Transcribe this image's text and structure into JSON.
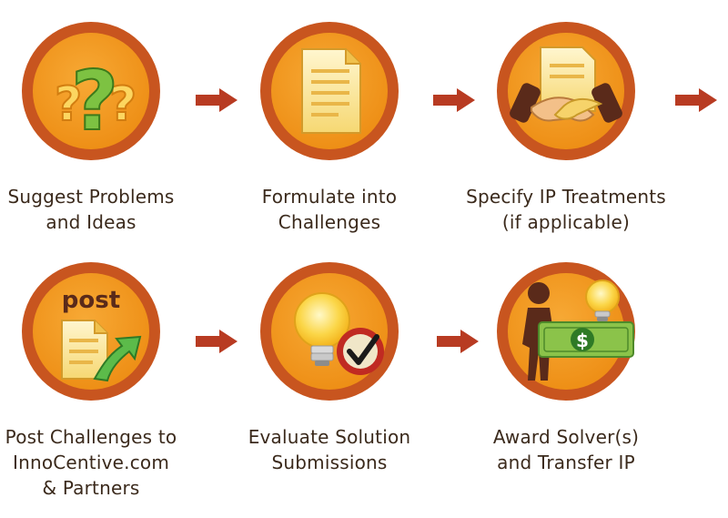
{
  "colors": {
    "ring": "#c8551f",
    "disc": "#f29a1f",
    "text": "#3b2a1c",
    "arrow": "#b83b22"
  },
  "steps": [
    {
      "icon": "question-marks-icon",
      "line1": "Suggest Problems",
      "line2": "and Ideas",
      "line3": ""
    },
    {
      "icon": "document-icon",
      "line1": "Formulate into",
      "line2": "Challenges",
      "line3": ""
    },
    {
      "icon": "handshake-icon",
      "line1": "Specify IP Treatments",
      "line2": "(if applicable)",
      "line3": ""
    },
    {
      "icon": "post-document-icon",
      "post_text": "post",
      "line1": "Post Challenges to",
      "line2": "InnoCentive.com",
      "line3": "& Partners"
    },
    {
      "icon": "lightbulb-check-icon",
      "line1": "Evaluate Solution",
      "line2": "Submissions",
      "line3": ""
    },
    {
      "icon": "award-money-icon",
      "money_symbol": "$",
      "line1": "Award Solver(s)",
      "line2": "and Transfer IP",
      "line3": ""
    }
  ]
}
